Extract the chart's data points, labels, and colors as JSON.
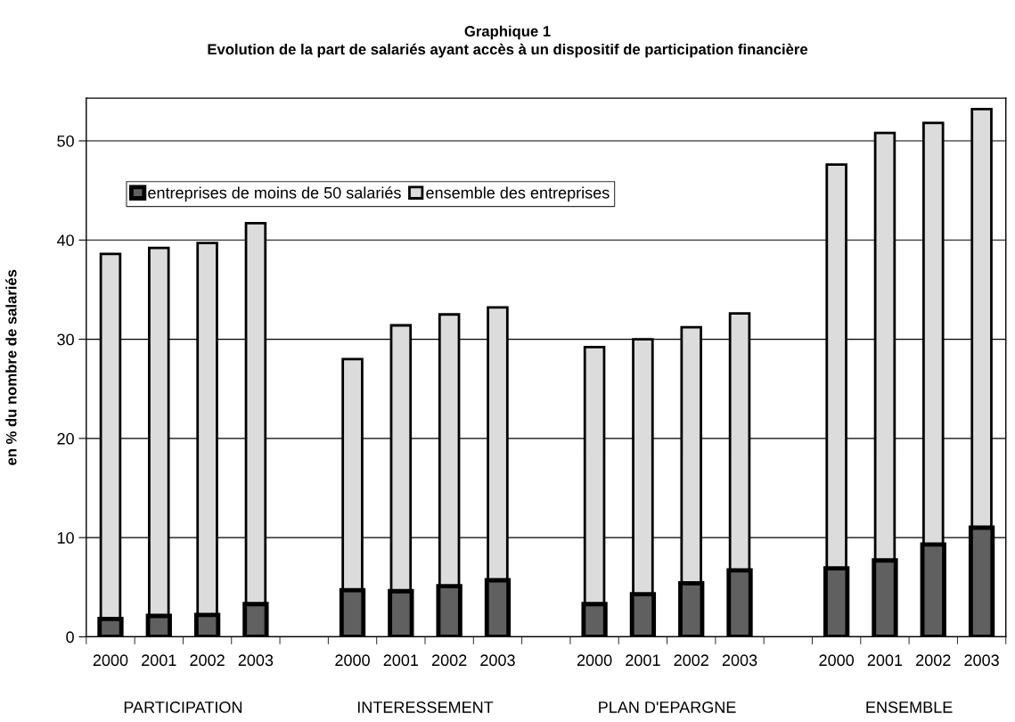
{
  "chart_data": {
    "type": "bar",
    "title": "Graphique 1",
    "subtitle": "Evolution de la part de salariés ayant accès à un dispositif de participation financière",
    "ylabel": "en % du nombre de salariés",
    "categories": [
      "2000",
      "2001",
      "2002",
      "2003",
      null,
      "2000",
      "2001",
      "2002",
      "2003",
      null,
      "2000",
      "2001",
      "2002",
      "2003",
      null,
      "2000",
      "2001",
      "2002",
      "2003"
    ],
    "series": [
      {
        "name": "entreprises de moins de 50 salariés",
        "color": "#606060",
        "values": [
          1.8,
          2.1,
          2.2,
          3.3,
          null,
          4.7,
          4.6,
          5.1,
          5.7,
          null,
          3.3,
          4.3,
          5.4,
          6.7,
          null,
          6.9,
          7.7,
          9.3,
          11.0
        ]
      },
      {
        "name": "ensemble des entreprises",
        "color": "#dcdcdc",
        "values": [
          38.6,
          39.2,
          39.7,
          41.7,
          null,
          28.0,
          31.4,
          32.5,
          33.2,
          null,
          29.2,
          30.0,
          31.2,
          32.6,
          null,
          47.6,
          50.8,
          51.8,
          53.2
        ]
      }
    ],
    "annotations": [
      "PARTICIPATION",
      "INTERESSEMENT",
      "PLAN D'EPARGNE",
      "ENSEMBLE"
    ],
    "ylim": [
      0,
      54.3
    ],
    "yticks": [
      0,
      10,
      20,
      30,
      40,
      50
    ],
    "grid": "y",
    "legend": "top left"
  }
}
